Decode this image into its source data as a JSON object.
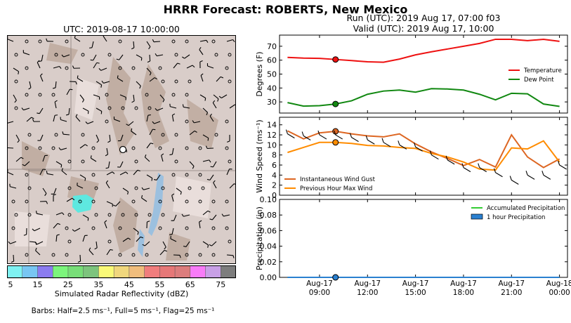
{
  "titles": {
    "main": "HRRR Forecast: ROBERTS, New Mexico",
    "run": "Run (UTC): 2019 Aug 17, 07:00 f03",
    "valid": "Valid (UTC): 2019 Aug 17, 10:00",
    "map": "UTC: 2019-08-17 10:00:00"
  },
  "colorbar": {
    "label": "Simulated Radar Reflectivity (dBZ)",
    "ticks": [
      "5",
      "15",
      "25",
      "35",
      "45",
      "55",
      "65",
      "75"
    ],
    "colors": [
      "#7ff2f2",
      "#78c6f2",
      "#8b7cf0",
      "#7cf57c",
      "#78de78",
      "#7dc47d",
      "#fafa78",
      "#f0d77d",
      "#f0bd7d",
      "#f07d7d",
      "#e67878",
      "#dc7d7d",
      "#f87cf8",
      "#c8a0e6",
      "#7d7d7d"
    ]
  },
  "barb_note": "Barbs: Half=2.5 ms⁻¹, Full=5 ms⁻¹, Flag=25 ms⁻¹",
  "chart_data": [
    {
      "type": "line",
      "ylabel": "Degrees (F)",
      "ylim": [
        22,
        78
      ],
      "yticks": [
        "30",
        "40",
        "50",
        "60",
        "70"
      ],
      "x": [
        7,
        8,
        9,
        10,
        11,
        12,
        13,
        14,
        15,
        16,
        17,
        18,
        19,
        20,
        21,
        22,
        23,
        24
      ],
      "series": [
        {
          "name": "Temperature",
          "color": "#ee1111",
          "values": [
            62,
            61.5,
            61.3,
            60.5,
            59.7,
            58.8,
            58.5,
            60.8,
            63.8,
            66,
            68,
            70,
            72,
            75,
            75,
            74,
            75,
            73.5
          ]
        },
        {
          "name": "Dew Point",
          "color": "#118811",
          "values": [
            29.5,
            27,
            27.3,
            28.5,
            30.8,
            35.5,
            37.8,
            38.5,
            37,
            39.5,
            39.3,
            38.5,
            35.5,
            31.5,
            36.2,
            35.8,
            28.5,
            26.8
          ]
        }
      ],
      "marker_x": 10,
      "legend": "right"
    },
    {
      "type": "line",
      "ylabel": "Wind Speed (ms⁻¹)",
      "ylim": [
        0,
        15.5
      ],
      "yticks": [
        "0",
        "2",
        "4",
        "6",
        "8",
        "10",
        "12",
        "14"
      ],
      "x": [
        7,
        8,
        9,
        10,
        11,
        12,
        13,
        14,
        15,
        16,
        17,
        18,
        19,
        20,
        21,
        22,
        23,
        24
      ],
      "series": [
        {
          "name": "Instantaneous Wind Gust",
          "color": "#dd6622",
          "values": [
            12.8,
            11.2,
            12.4,
            12.7,
            12.2,
            11.8,
            11.6,
            12.2,
            10.2,
            8.6,
            7.3,
            5.9,
            7.1,
            5.6,
            12.0,
            7.6,
            5.5,
            7.2
          ]
        },
        {
          "name": "Previous Hour Max Wind",
          "color": "#ff8c00",
          "values": [
            8.5,
            9.5,
            10.5,
            10.5,
            10.3,
            9.9,
            9.8,
            9.5,
            9.3,
            8.3,
            7.6,
            6.6,
            5.2,
            5.0,
            9.4,
            9.2,
            10.8,
            6.6
          ]
        }
      ],
      "marker_x": 10,
      "legend": "lower-left"
    },
    {
      "type": "bar",
      "ylabel": "Precipitation (in)",
      "ylim": [
        0,
        0.1
      ],
      "yticks": [
        "0.00",
        "0.02",
        "0.04",
        "0.06",
        "0.08",
        "0.10"
      ],
      "xticks": [
        "Aug-17\n09:00",
        "Aug-17\n12:00",
        "Aug-17\n15:00",
        "Aug-17\n18:00",
        "Aug-17\n21:00",
        "Aug-18\n00:00"
      ],
      "xtick_hours": [
        9,
        12,
        15,
        18,
        21,
        24
      ],
      "series": [
        {
          "name": "Accumulated Precipitation",
          "color": "#33cc33",
          "values": [
            0,
            0,
            0,
            0,
            0,
            0,
            0,
            0,
            0,
            0,
            0,
            0,
            0,
            0,
            0,
            0,
            0,
            0
          ]
        },
        {
          "name": "1 hour Precipitation",
          "color": "#2a80d0",
          "values": [
            0,
            0,
            0,
            0,
            0,
            0,
            0,
            0,
            0,
            0,
            0,
            0,
            0,
            0,
            0,
            0,
            0,
            0
          ]
        }
      ],
      "marker_x": 10,
      "legend": "top-right"
    }
  ]
}
